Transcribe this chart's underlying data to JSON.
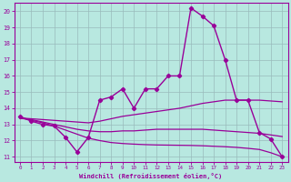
{
  "xlabel": "Windchill (Refroidissement éolien,°C)",
  "xlim": [
    -0.5,
    23.5
  ],
  "ylim": [
    10.7,
    20.5
  ],
  "yticks": [
    11,
    12,
    13,
    14,
    15,
    16,
    17,
    18,
    19,
    20
  ],
  "xticks": [
    0,
    1,
    2,
    3,
    4,
    5,
    6,
    7,
    8,
    9,
    10,
    11,
    12,
    13,
    14,
    15,
    16,
    17,
    18,
    19,
    20,
    21,
    22,
    23
  ],
  "background_color": "#b8e8e0",
  "line_color": "#990099",
  "grid_color": "#99bbbb",
  "line_main_x": [
    0,
    1,
    2,
    3,
    4,
    5,
    6,
    7,
    8,
    9,
    10,
    11,
    12,
    13,
    14,
    15,
    16,
    17,
    18,
    19,
    20,
    21,
    22,
    23
  ],
  "line_main_y": [
    13.5,
    13.2,
    13.0,
    12.9,
    12.2,
    11.3,
    12.2,
    14.5,
    14.7,
    15.2,
    14.0,
    15.2,
    15.2,
    16.0,
    16.0,
    20.2,
    19.7,
    19.1,
    17.0,
    14.5,
    14.5,
    12.5,
    12.1,
    11.0
  ],
  "line_upper_x": [
    0,
    1,
    2,
    3,
    4,
    5,
    6,
    7,
    8,
    9,
    10,
    11,
    12,
    13,
    14,
    15,
    16,
    17,
    18,
    19,
    20,
    21,
    22,
    23
  ],
  "line_upper_y": [
    13.4,
    13.35,
    13.3,
    13.25,
    13.2,
    13.15,
    13.1,
    13.2,
    13.35,
    13.5,
    13.6,
    13.7,
    13.8,
    13.9,
    14.0,
    14.15,
    14.3,
    14.4,
    14.5,
    14.5,
    14.5,
    14.5,
    14.45,
    14.4
  ],
  "line_mid_x": [
    0,
    1,
    2,
    3,
    4,
    5,
    6,
    7,
    8,
    9,
    10,
    11,
    12,
    13,
    14,
    15,
    16,
    17,
    18,
    19,
    20,
    21,
    22,
    23
  ],
  "line_mid_y": [
    13.4,
    13.3,
    13.15,
    13.0,
    12.85,
    12.7,
    12.6,
    12.55,
    12.55,
    12.6,
    12.6,
    12.65,
    12.7,
    12.7,
    12.7,
    12.7,
    12.7,
    12.65,
    12.6,
    12.55,
    12.5,
    12.45,
    12.35,
    12.25
  ],
  "line_bottom_x": [
    0,
    1,
    2,
    3,
    4,
    5,
    6,
    7,
    8,
    9,
    10,
    11,
    12,
    13,
    14,
    15,
    16,
    17,
    18,
    19,
    20,
    21,
    22,
    23
  ],
  "line_bottom_y": [
    13.4,
    13.25,
    13.1,
    12.9,
    12.65,
    12.4,
    12.15,
    12.0,
    11.88,
    11.82,
    11.78,
    11.75,
    11.73,
    11.72,
    11.71,
    11.7,
    11.68,
    11.65,
    11.62,
    11.58,
    11.52,
    11.45,
    11.25,
    11.0
  ]
}
